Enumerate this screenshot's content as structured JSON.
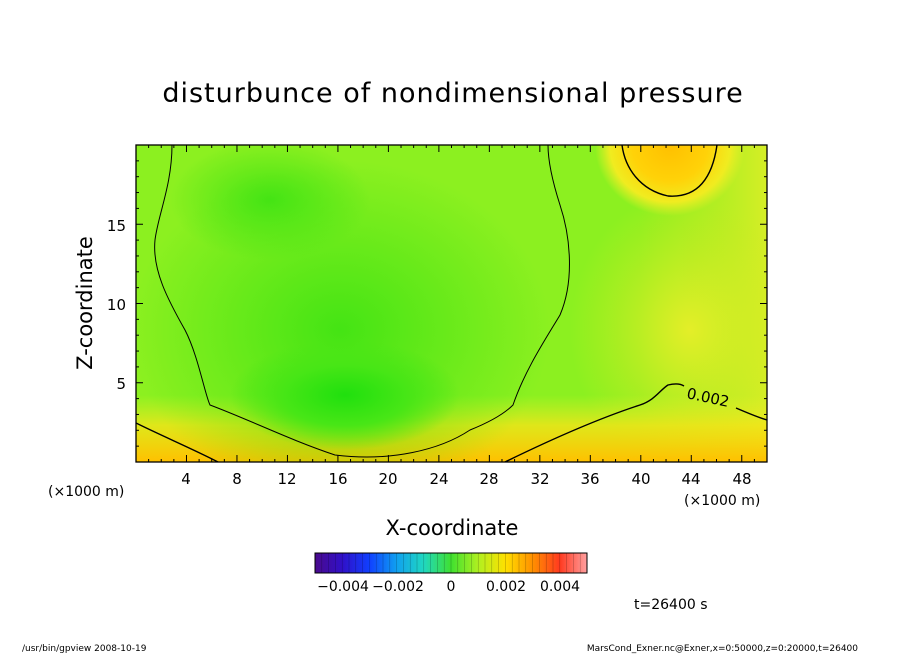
{
  "chart_data": {
    "type": "heatmap",
    "title": "disturbunce of nondimensional pressure",
    "xlabel": "X-coordinate",
    "ylabel": "Z-coordinate",
    "x_unit": "(×1000 m)",
    "xlim": [
      0,
      50
    ],
    "ylim": [
      0,
      20
    ],
    "x_ticks": [
      "4",
      "8",
      "12",
      "16",
      "20",
      "24",
      "28",
      "32",
      "36",
      "40",
      "44",
      "48"
    ],
    "y_ticks": [
      "5",
      "10",
      "15"
    ],
    "colorbar": {
      "range": [
        -0.005,
        0.005
      ],
      "tick_labels": [
        "−0.004",
        "−0.002",
        "0",
        "0.002",
        "0.004"
      ]
    },
    "contour_label": "0.002",
    "time_label": "t=26400 s"
  },
  "footer": {
    "left": "/usr/bin/gpview   2008-10-19",
    "right": "MarsCond_Exner.nc@Exner,x=0:50000,z=0:20000,t=26400"
  },
  "colors": {
    "min_green": "#22e00e",
    "mid_green": "#8cf020",
    "yellow": "#e8f028",
    "orange": "#ff8800",
    "background": "#ffffff",
    "line": "#000000"
  }
}
